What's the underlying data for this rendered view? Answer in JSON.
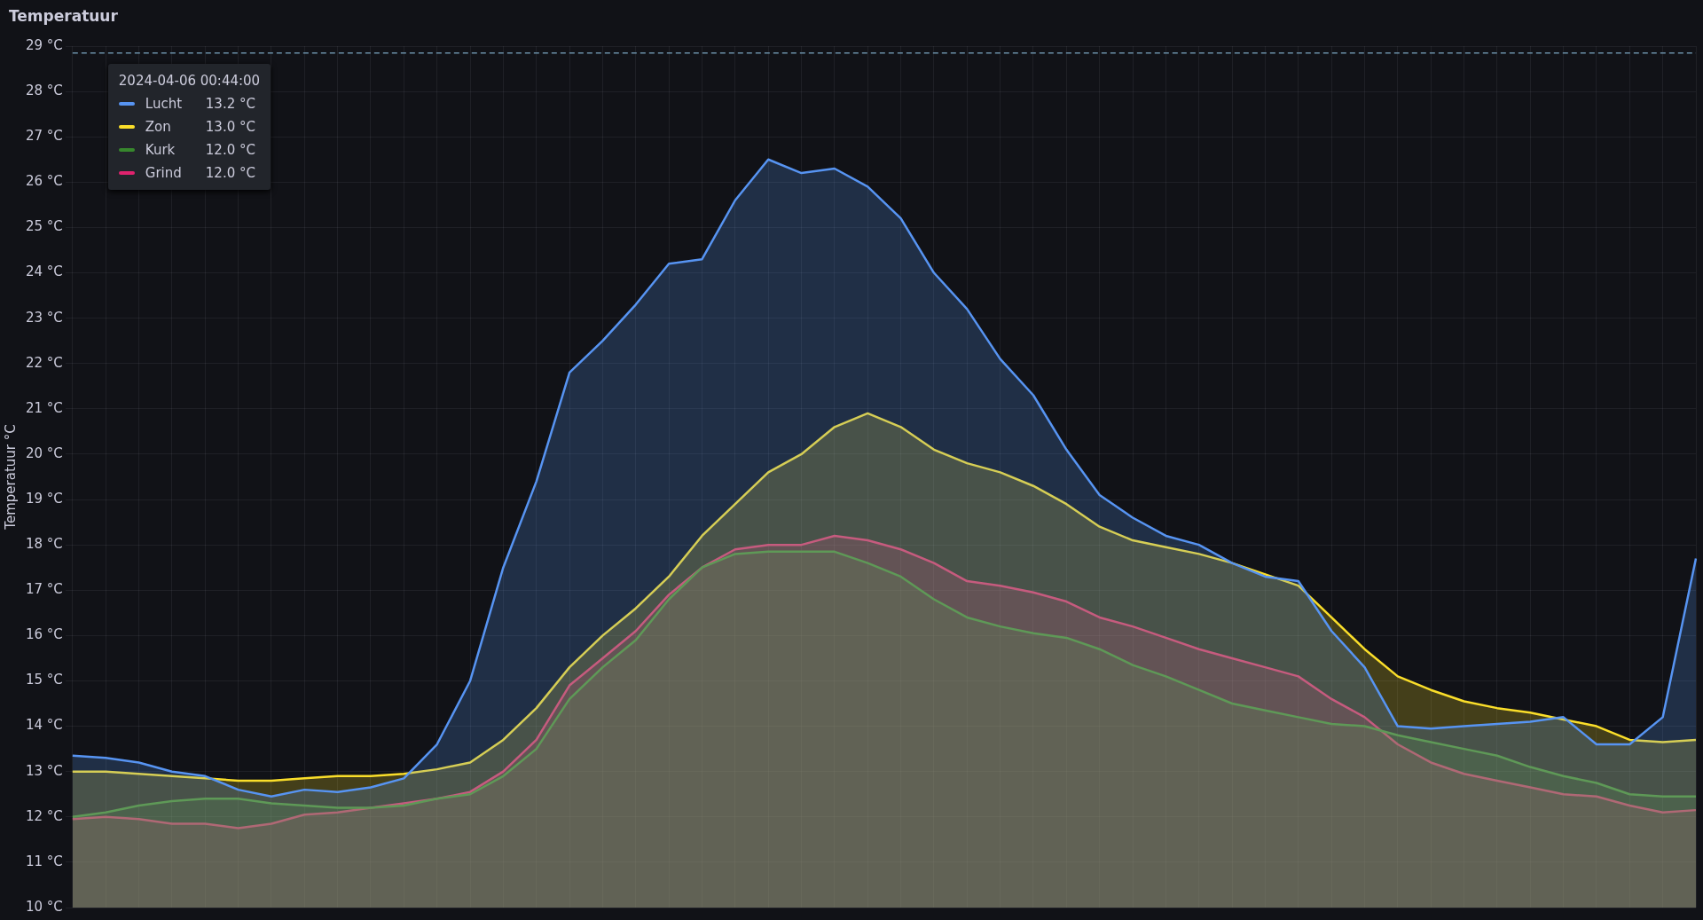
{
  "chart_data": {
    "type": "area",
    "title": "Temperatuur",
    "ylabel": "Temperatuur °C",
    "categories": [
      null,
      null,
      null,
      null,
      null,
      null,
      null,
      null,
      null,
      null,
      null,
      null,
      null,
      null,
      null,
      null,
      null,
      null,
      null,
      null,
      null,
      null,
      null,
      null,
      null,
      null,
      null,
      null,
      null,
      null,
      null,
      null,
      null,
      null,
      null,
      null,
      null,
      null,
      null,
      null,
      null,
      null,
      null,
      null,
      null,
      null,
      null,
      null,
      null,
      null
    ],
    "series": [
      {
        "name": "Lucht",
        "color": "#5794f2",
        "values": [
          13.35,
          13.3,
          13.2,
          13.0,
          12.9,
          12.6,
          12.45,
          12.6,
          12.55,
          12.65,
          12.85,
          13.6,
          15.0,
          17.5,
          19.4,
          21.8,
          22.5,
          23.3,
          24.2,
          24.3,
          25.6,
          26.5,
          26.2,
          26.3,
          25.9,
          25.2,
          24.0,
          23.2,
          22.1,
          21.3,
          20.1,
          19.1,
          18.6,
          18.2,
          18.0,
          17.6,
          17.3,
          17.2,
          16.1,
          15.3,
          14.0,
          13.95,
          14.0,
          14.05,
          14.1,
          14.2,
          13.6,
          13.6,
          14.2,
          17.7
        ]
      },
      {
        "name": "Zon",
        "color": "#fade2a",
        "values": [
          13.0,
          13.0,
          12.95,
          12.9,
          12.85,
          12.8,
          12.8,
          12.85,
          12.9,
          12.9,
          12.95,
          13.05,
          13.2,
          13.7,
          14.4,
          15.3,
          16.0,
          16.6,
          17.3,
          18.2,
          18.9,
          19.6,
          20.0,
          20.6,
          20.9,
          20.6,
          20.1,
          19.8,
          19.6,
          19.3,
          18.9,
          18.4,
          18.1,
          17.95,
          17.8,
          17.6,
          17.35,
          17.1,
          16.4,
          15.7,
          15.1,
          14.8,
          14.55,
          14.4,
          14.3,
          14.15,
          14.0,
          13.7,
          13.65,
          13.7
        ]
      },
      {
        "name": "Kurk",
        "color": "#37872d",
        "values": [
          12.0,
          12.1,
          12.25,
          12.35,
          12.4,
          12.4,
          12.3,
          12.25,
          12.2,
          12.2,
          12.25,
          12.4,
          12.5,
          12.9,
          13.5,
          14.6,
          15.3,
          15.9,
          16.8,
          17.5,
          17.8,
          17.85,
          17.85,
          17.85,
          17.6,
          17.3,
          16.8,
          16.4,
          16.2,
          16.05,
          15.95,
          15.7,
          15.35,
          15.1,
          14.8,
          14.5,
          14.35,
          14.2,
          14.05,
          14.0,
          13.8,
          13.65,
          13.5,
          13.35,
          13.1,
          12.9,
          12.75,
          12.5,
          12.45,
          12.45
        ]
      },
      {
        "name": "Grind",
        "color": "#e0226e",
        "values": [
          11.95,
          12.0,
          11.95,
          11.85,
          11.85,
          11.75,
          11.85,
          12.05,
          12.1,
          12.2,
          12.3,
          12.4,
          12.55,
          13.0,
          13.7,
          14.9,
          15.5,
          16.1,
          16.9,
          17.5,
          17.9,
          18.0,
          18.0,
          18.2,
          18.1,
          17.9,
          17.6,
          17.2,
          17.1,
          16.95,
          16.75,
          16.4,
          16.2,
          15.95,
          15.7,
          15.5,
          15.3,
          15.1,
          14.6,
          14.2,
          13.6,
          13.2,
          12.95,
          12.8,
          12.65,
          12.5,
          12.45,
          12.25,
          12.1,
          12.15
        ]
      }
    ],
    "ylim": [
      10,
      29
    ],
    "yticks": [
      {
        "value": 10,
        "label": "10 °C"
      },
      {
        "value": 11,
        "label": "11 °C"
      },
      {
        "value": 12,
        "label": "12 °C"
      },
      {
        "value": 13,
        "label": "13 °C"
      },
      {
        "value": 14,
        "label": "14 °C"
      },
      {
        "value": 15,
        "label": "15 °C"
      },
      {
        "value": 16,
        "label": "16 °C"
      },
      {
        "value": 17,
        "label": "17 °C"
      },
      {
        "value": 18,
        "label": "18 °C"
      },
      {
        "value": 19,
        "label": "19 °C"
      },
      {
        "value": 20,
        "label": "20 °C"
      },
      {
        "value": 21,
        "label": "21 °C"
      },
      {
        "value": 22,
        "label": "22 °C"
      },
      {
        "value": 23,
        "label": "23 °C"
      },
      {
        "value": 24,
        "label": "24 °C"
      },
      {
        "value": 25,
        "label": "25 °C"
      },
      {
        "value": 26,
        "label": "26 °C"
      },
      {
        "value": 27,
        "label": "27 °C"
      },
      {
        "value": 28,
        "label": "28 °C"
      },
      {
        "value": 29,
        "label": "29 °C"
      }
    ],
    "tick_labels": "y",
    "grid": true,
    "legend": "top left",
    "marker": "none",
    "line_style": "solid",
    "ref_lines": [
      {
        "axis": "y",
        "value": 28.85,
        "color": "#6b8fa8",
        "line_style": "dashed"
      }
    ],
    "annotations": [
      "2024-04-06 00:44:00",
      "13.2 °C",
      "13.0 °C",
      "12.0 °C",
      "12.0 °C"
    ]
  }
}
